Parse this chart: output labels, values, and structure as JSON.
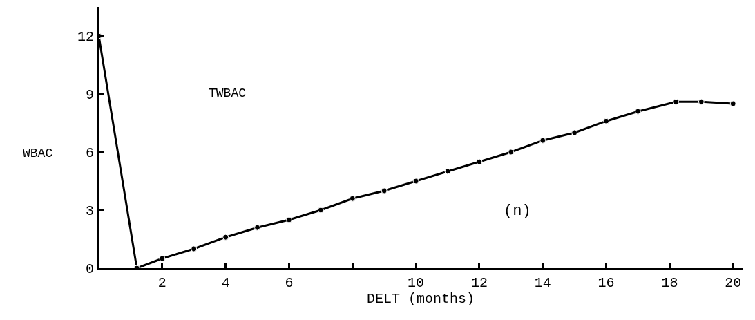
{
  "chart_data": {
    "type": "line",
    "xlabel": "DELT (months)",
    "ylabel": "WBAC",
    "annotations": [
      "(n)"
    ],
    "x": [
      0,
      1.2,
      2,
      3,
      4,
      5,
      6,
      7,
      8,
      9,
      10,
      11,
      12,
      13,
      14,
      15,
      16,
      17,
      18.2,
      19,
      20
    ],
    "series": [
      {
        "name": "TWBAC",
        "color": "#000000",
        "values": [
          12,
          0,
          0.5,
          1.0,
          1.6,
          2.1,
          2.5,
          3.0,
          3.6,
          4.0,
          4.5,
          5.0,
          5.5,
          6.0,
          6.6,
          7.0,
          7.6,
          8.1,
          8.6,
          8.6,
          8.5
        ]
      }
    ],
    "xlim": [
      0,
      20.3
    ],
    "ylim": [
      0,
      13.5
    ],
    "xticks": [
      2,
      4,
      6,
      {
        "value": 8,
        "label": null
      },
      10,
      12,
      14,
      16,
      18,
      20
    ],
    "yticks": [
      0,
      3,
      6,
      9,
      12
    ],
    "marker": "circle",
    "line_style": "solid"
  }
}
